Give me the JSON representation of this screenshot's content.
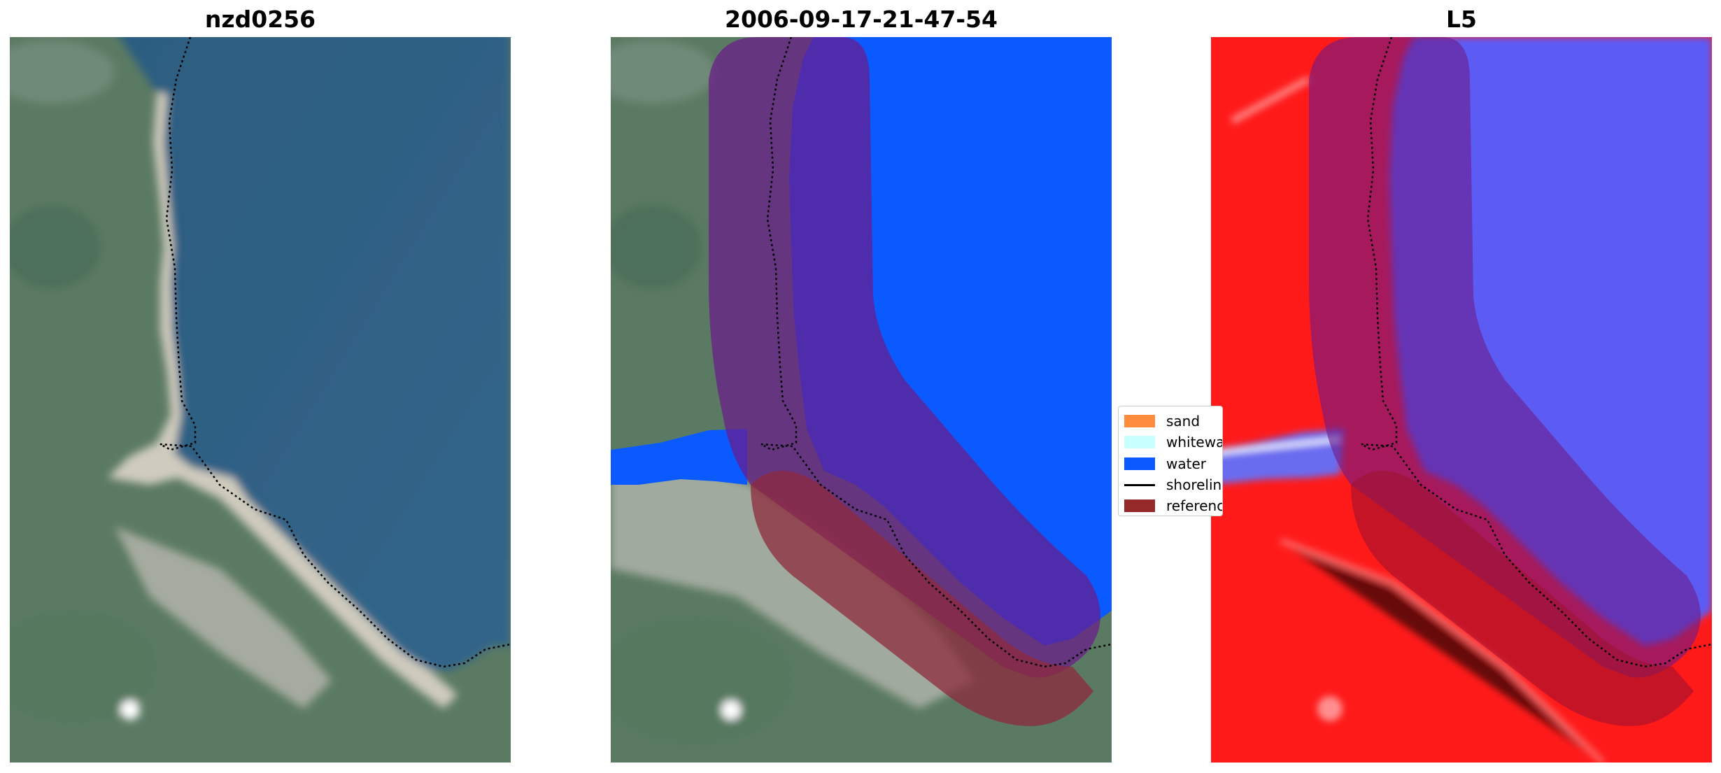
{
  "panels": [
    {
      "title": "nzd0256"
    },
    {
      "title": "2006-09-17-21-47-54"
    },
    {
      "title": "L5"
    }
  ],
  "legend": {
    "items": [
      {
        "label": "sand",
        "color": "#ff8c3c",
        "kind": "patch"
      },
      {
        "label": "whitewater",
        "color": "#c8ffff",
        "kind": "patch"
      },
      {
        "label": "water",
        "color": "#0a5aff",
        "kind": "patch"
      },
      {
        "label": "shoreline",
        "color": "#000000",
        "kind": "line"
      },
      {
        "label": "reference shoreline buffer",
        "color": "#962a2a",
        "kind": "patch"
      }
    ]
  },
  "colors": {
    "sea": "#2f5f82",
    "land": "#5b7a63",
    "beach": "#c9c5b8",
    "water_class": "#0a5aff",
    "buffer": "#8e2a64",
    "index_land": "#ff1a1a",
    "index_water": "#4a4cf2"
  }
}
